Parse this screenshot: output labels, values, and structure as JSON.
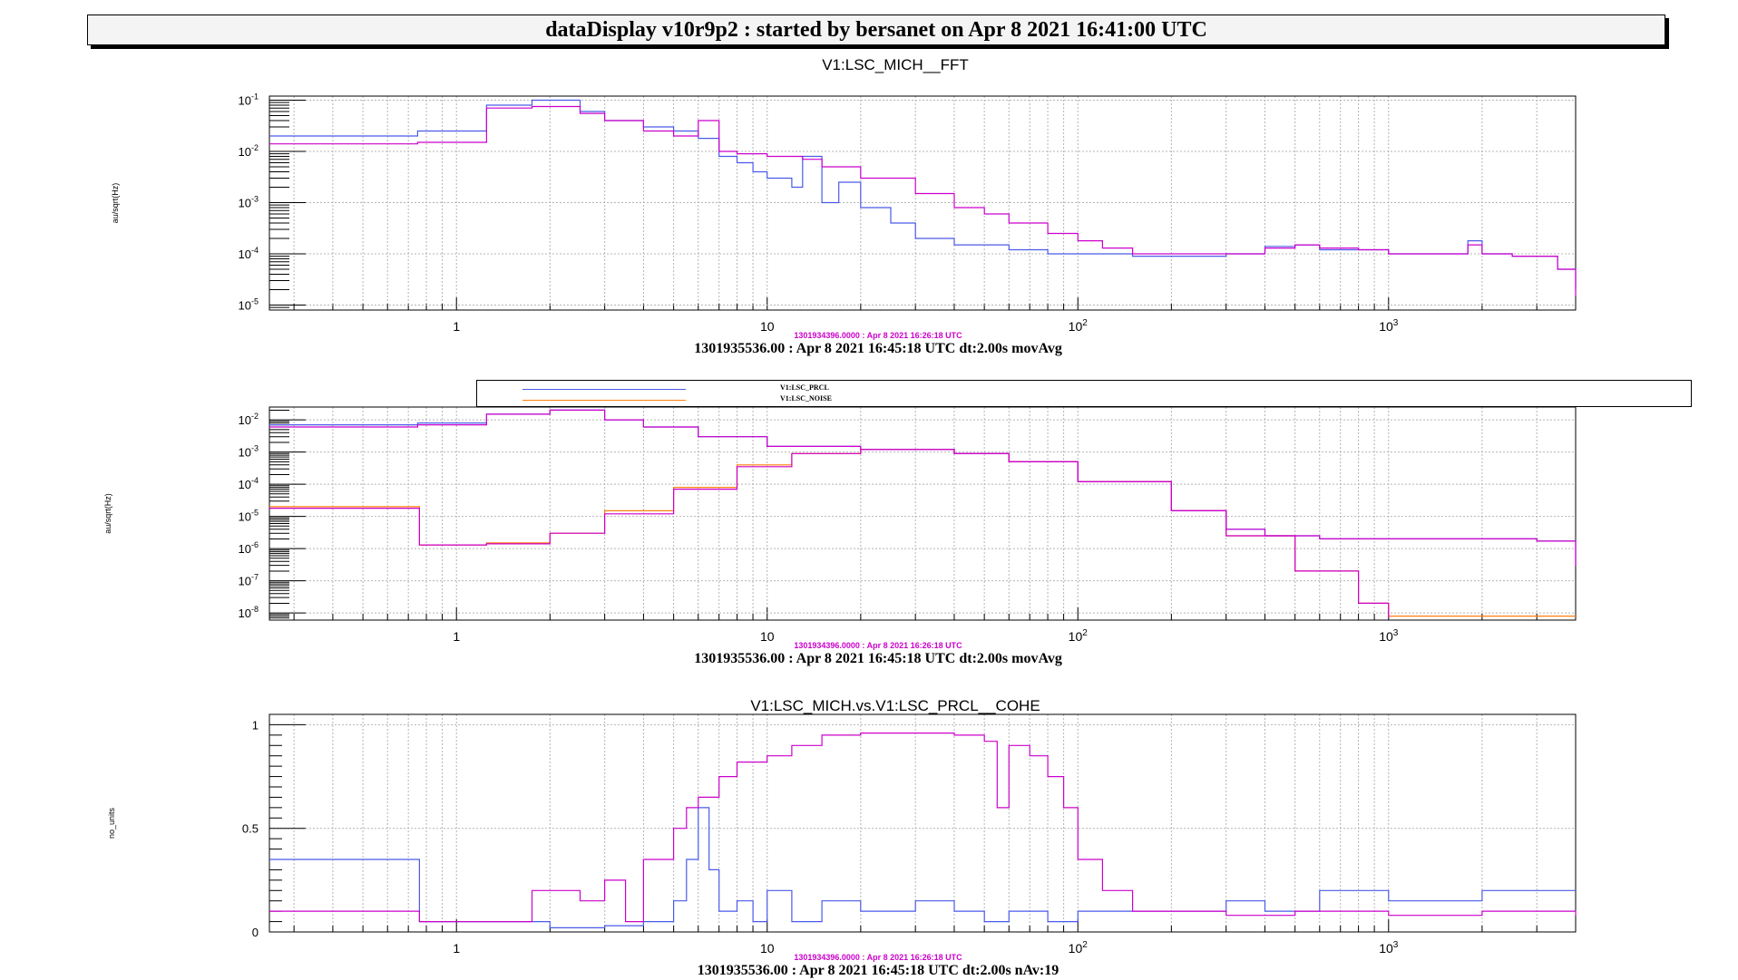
{
  "header": {
    "title": "dataDisplay v10r9p2 : started by bersanet on Apr  8 2021 16:41:00 UTC"
  },
  "colors": {
    "blue": "#4b5ae8",
    "magenta": "#cc00cc",
    "orange": "#ff7f0e",
    "grid": "#b4b4b4"
  },
  "chart_data": [
    {
      "type": "line",
      "title": "V1:LSC_MICH__FFT",
      "ylabel": "au/sqrt(Hz)",
      "xscale": "log",
      "yscale": "log",
      "xlim": [
        0.25,
        4000
      ],
      "ylim": [
        8e-06,
        0.12
      ],
      "x_tick_labels": [
        "1",
        "10",
        "10^2",
        "10^3"
      ],
      "y_tick_labels": [
        "10^-5",
        "10^-4",
        "10^-3",
        "10^-2",
        "10^-1"
      ],
      "ref_time": "1301934396.0000 : Apr  8 2021 16:26:18 UTC",
      "time_label": "1301935536.00 : Apr  8 2021 16:45:18 UTC dt:2.00s movAvg",
      "series": [
        {
          "color": "blue",
          "points": [
            [
              0.25,
              0.02
            ],
            [
              0.5,
              0.02
            ],
            [
              0.75,
              0.025
            ],
            [
              1.25,
              0.08
            ],
            [
              1.75,
              0.1
            ],
            [
              2.5,
              0.06
            ],
            [
              3,
              0.04
            ],
            [
              4,
              0.03
            ],
            [
              5,
              0.025
            ],
            [
              6,
              0.018
            ],
            [
              7,
              0.008
            ],
            [
              8,
              0.006
            ],
            [
              9,
              0.004
            ],
            [
              10,
              0.003
            ],
            [
              12,
              0.002
            ],
            [
              13,
              0.008
            ],
            [
              15,
              0.001
            ],
            [
              17,
              0.0025
            ],
            [
              20,
              0.0008
            ],
            [
              25,
              0.0004
            ],
            [
              30,
              0.0002
            ],
            [
              40,
              0.00015
            ],
            [
              50,
              0.00015
            ],
            [
              60,
              0.00012
            ],
            [
              80,
              0.0001
            ],
            [
              100,
              0.0001
            ],
            [
              150,
              9e-05
            ],
            [
              200,
              9e-05
            ],
            [
              300,
              0.0001
            ],
            [
              400,
              0.00014
            ],
            [
              500,
              0.00015
            ],
            [
              600,
              0.00012
            ],
            [
              800,
              0.00012
            ],
            [
              1000,
              0.0001
            ],
            [
              1500,
              0.0001
            ],
            [
              1800,
              0.00018
            ],
            [
              2000,
              0.0001
            ],
            [
              2500,
              9e-05
            ],
            [
              3000,
              9e-05
            ],
            [
              3500,
              5e-05
            ],
            [
              4000,
              2e-05
            ]
          ]
        },
        {
          "color": "magenta",
          "points": [
            [
              0.25,
              0.014
            ],
            [
              0.5,
              0.014
            ],
            [
              0.75,
              0.015
            ],
            [
              1.25,
              0.07
            ],
            [
              1.75,
              0.075
            ],
            [
              2.5,
              0.055
            ],
            [
              3,
              0.04
            ],
            [
              4,
              0.025
            ],
            [
              5,
              0.02
            ],
            [
              6,
              0.04
            ],
            [
              7,
              0.01
            ],
            [
              8,
              0.009
            ],
            [
              10,
              0.008
            ],
            [
              13,
              0.007
            ],
            [
              15,
              0.005
            ],
            [
              20,
              0.003
            ],
            [
              30,
              0.0015
            ],
            [
              40,
              0.0008
            ],
            [
              50,
              0.0006
            ],
            [
              60,
              0.0004
            ],
            [
              80,
              0.00025
            ],
            [
              100,
              0.00018
            ],
            [
              120,
              0.00013
            ],
            [
              150,
              0.0001
            ],
            [
              200,
              0.0001
            ],
            [
              300,
              0.0001
            ],
            [
              400,
              0.00013
            ],
            [
              500,
              0.00015
            ],
            [
              600,
              0.00013
            ],
            [
              800,
              0.00012
            ],
            [
              1000,
              0.0001
            ],
            [
              1500,
              0.0001
            ],
            [
              1800,
              0.00015
            ],
            [
              2000,
              0.0001
            ],
            [
              2500,
              9e-05
            ],
            [
              3000,
              9e-05
            ],
            [
              3500,
              5e-05
            ],
            [
              4000,
              1.5e-05
            ]
          ]
        }
      ]
    },
    {
      "type": "line",
      "title": "",
      "ylabel": "au/sqrt(Hz)",
      "xscale": "log",
      "yscale": "log",
      "xlim": [
        0.25,
        4000
      ],
      "ylim": [
        6e-09,
        0.025
      ],
      "x_tick_labels": [
        "1",
        "10",
        "10^2",
        "10^3"
      ],
      "y_tick_labels": [
        "10^-8",
        "10^-7",
        "10^-6",
        "10^-5",
        "10^-4",
        "10^-3",
        "10^-2"
      ],
      "ref_time": "1301934396.0000 : Apr  8 2021 16:26:18 UTC",
      "time_label": "1301935536.00 : Apr  8 2021 16:45:18 UTC dt:2.00s movAvg",
      "legend": [
        "V1:LSC_PRCL",
        "V1:LSC_NOISE"
      ],
      "series": [
        {
          "name": "V1:LSC_PRCL",
          "color": "blue",
          "points": [
            [
              0.25,
              0.007
            ],
            [
              0.75,
              0.008
            ],
            [
              1.25,
              0.015
            ],
            [
              2,
              0.02
            ],
            [
              3,
              0.01
            ],
            [
              4,
              0.006
            ],
            [
              6,
              0.003
            ],
            [
              10,
              0.0015
            ],
            [
              20,
              0.0012
            ],
            [
              40,
              0.0009
            ],
            [
              60,
              0.0005
            ],
            [
              100,
              0.00012
            ],
            [
              200,
              1.5e-05
            ],
            [
              300,
              4e-06
            ],
            [
              400,
              2.5e-06
            ],
            [
              600,
              2e-06
            ],
            [
              1000,
              2e-06
            ],
            [
              2000,
              2e-06
            ],
            [
              3000,
              1.7e-06
            ],
            [
              4000,
              3e-07
            ]
          ]
        },
        {
          "name": "V1:LSC_NOISE",
          "color": "orange",
          "points": [
            [
              0.25,
              2e-05
            ],
            [
              0.75,
              2e-05
            ],
            [
              0.76,
              1.3e-06
            ],
            [
              1.25,
              1.5e-06
            ],
            [
              2,
              3e-06
            ],
            [
              3,
              1.5e-05
            ],
            [
              5,
              8e-05
            ],
            [
              8,
              0.0004
            ],
            [
              12,
              0.0009
            ],
            [
              20,
              0.0012
            ],
            [
              40,
              0.0009
            ],
            [
              60,
              0.0005
            ],
            [
              100,
              0.00012
            ],
            [
              200,
              1.5e-05
            ],
            [
              300,
              2.5e-06
            ],
            [
              500,
              2e-07
            ],
            [
              800,
              2e-08
            ],
            [
              1000,
              8e-09
            ],
            [
              2000,
              8e-09
            ],
            [
              4000,
              8e-09
            ]
          ]
        },
        {
          "color": "magenta",
          "points": [
            [
              0.25,
              0.006
            ],
            [
              0.75,
              0.007
            ],
            [
              1.25,
              0.015
            ],
            [
              2,
              0.02
            ],
            [
              3,
              0.01
            ],
            [
              4,
              0.006
            ],
            [
              6,
              0.003
            ],
            [
              10,
              0.0015
            ],
            [
              20,
              0.0012
            ],
            [
              40,
              0.0009
            ],
            [
              60,
              0.0005
            ],
            [
              100,
              0.00012
            ],
            [
              200,
              1.5e-05
            ],
            [
              300,
              4e-06
            ],
            [
              400,
              2.5e-06
            ],
            [
              600,
              2e-06
            ],
            [
              1000,
              2e-06
            ],
            [
              2000,
              2e-06
            ],
            [
              3000,
              1.7e-06
            ],
            [
              4000,
              3e-07
            ]
          ]
        },
        {
          "color": "magenta",
          "points": [
            [
              0.25,
              1.8e-05
            ],
            [
              0.75,
              1.8e-05
            ],
            [
              0.76,
              1.3e-06
            ],
            [
              1.25,
              1.4e-06
            ],
            [
              2,
              3e-06
            ],
            [
              3,
              1.2e-05
            ],
            [
              5,
              7e-05
            ],
            [
              8,
              0.00035
            ],
            [
              12,
              0.0009
            ],
            [
              20,
              0.0012
            ],
            [
              40,
              0.0009
            ],
            [
              60,
              0.0005
            ],
            [
              100,
              0.00012
            ],
            [
              200,
              1.5e-05
            ],
            [
              300,
              2.5e-06
            ],
            [
              500,
              2e-07
            ],
            [
              800,
              2e-08
            ],
            [
              1000,
              7e-09
            ]
          ]
        }
      ]
    },
    {
      "type": "line",
      "title": "V1:LSC_MICH.vs.V1:LSC_PRCL__COHE",
      "ylabel": "no_units",
      "xscale": "log",
      "yscale": "linear",
      "xlim": [
        0.25,
        4000
      ],
      "ylim": [
        0,
        1.05
      ],
      "x_tick_labels": [
        "1",
        "10",
        "10^2",
        "10^3"
      ],
      "y_tick_labels": [
        "0",
        "0.5",
        "1"
      ],
      "ref_time": "1301934396.0000 : Apr  8 2021 16:26:18 UTC",
      "time_label": "1301935536.00 : Apr  8 2021 16:45:18 UTC dt:2.00s nAv:19",
      "series": [
        {
          "color": "blue",
          "points": [
            [
              0.25,
              0.35
            ],
            [
              0.75,
              0.35
            ],
            [
              0.76,
              0.05
            ],
            [
              1.25,
              0.05
            ],
            [
              2,
              0.02
            ],
            [
              3,
              0.03
            ],
            [
              4,
              0.05
            ],
            [
              5,
              0.15
            ],
            [
              5.5,
              0.35
            ],
            [
              6,
              0.6
            ],
            [
              6.5,
              0.3
            ],
            [
              7,
              0.1
            ],
            [
              8,
              0.15
            ],
            [
              9,
              0.05
            ],
            [
              10,
              0.2
            ],
            [
              12,
              0.05
            ],
            [
              15,
              0.15
            ],
            [
              20,
              0.1
            ],
            [
              30,
              0.15
            ],
            [
              40,
              0.1
            ],
            [
              50,
              0.05
            ],
            [
              60,
              0.1
            ],
            [
              80,
              0.05
            ],
            [
              100,
              0.1
            ],
            [
              200,
              0.1
            ],
            [
              300,
              0.15
            ],
            [
              400,
              0.1
            ],
            [
              600,
              0.2
            ],
            [
              1000,
              0.15
            ],
            [
              2000,
              0.2
            ],
            [
              4000,
              0.2
            ]
          ]
        },
        {
          "color": "magenta",
          "points": [
            [
              0.25,
              0.1
            ],
            [
              0.75,
              0.1
            ],
            [
              0.76,
              0.05
            ],
            [
              1.25,
              0.05
            ],
            [
              1.75,
              0.2
            ],
            [
              2.5,
              0.15
            ],
            [
              3,
              0.25
            ],
            [
              3.5,
              0.05
            ],
            [
              4,
              0.35
            ],
            [
              5,
              0.5
            ],
            [
              5.5,
              0.6
            ],
            [
              6,
              0.65
            ],
            [
              7,
              0.75
            ],
            [
              8,
              0.82
            ],
            [
              10,
              0.85
            ],
            [
              12,
              0.9
            ],
            [
              15,
              0.95
            ],
            [
              20,
              0.96
            ],
            [
              30,
              0.96
            ],
            [
              40,
              0.95
            ],
            [
              50,
              0.92
            ],
            [
              55,
              0.6
            ],
            [
              60,
              0.9
            ],
            [
              70,
              0.85
            ],
            [
              80,
              0.75
            ],
            [
              90,
              0.6
            ],
            [
              100,
              0.35
            ],
            [
              120,
              0.2
            ],
            [
              150,
              0.1
            ],
            [
              200,
              0.1
            ],
            [
              300,
              0.08
            ],
            [
              500,
              0.1
            ],
            [
              1000,
              0.08
            ],
            [
              2000,
              0.1
            ],
            [
              4000,
              0.08
            ]
          ]
        }
      ]
    }
  ]
}
